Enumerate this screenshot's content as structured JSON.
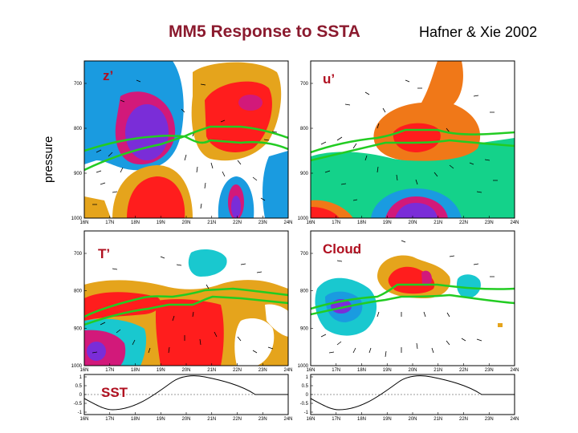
{
  "title": "MM5 Response to SSTA",
  "reference": "Hafner & Xie 2002",
  "ylabel": "pressure",
  "x_ticks": [
    "16N",
    "17N",
    "18N",
    "19N",
    "20N",
    "21N",
    "22N",
    "23N",
    "24N"
  ],
  "p_ticks": [
    "700",
    "800",
    "900",
    "1000"
  ],
  "sst_ticks": [
    "1",
    "0.5",
    "0",
    "-0.5",
    "-1"
  ],
  "panels": [
    {
      "label": "z’"
    },
    {
      "label": "u’"
    },
    {
      "label": "T’"
    },
    {
      "label": "Cloud"
    }
  ],
  "sst_panels": [
    {
      "label": "SST"
    },
    {
      "label": ""
    }
  ],
  "colors": {
    "title": "#8b1a2e",
    "label": "#b01020",
    "blue": "#1a9be0",
    "cyan": "#19c8cf",
    "green": "#14d28a",
    "orange": "#e5a41c",
    "orange2": "#f07818",
    "red": "#ff1d1d",
    "magenta": "#d2197a",
    "purple": "#7a2dd8",
    "inversion_line": "#22cc22"
  }
}
